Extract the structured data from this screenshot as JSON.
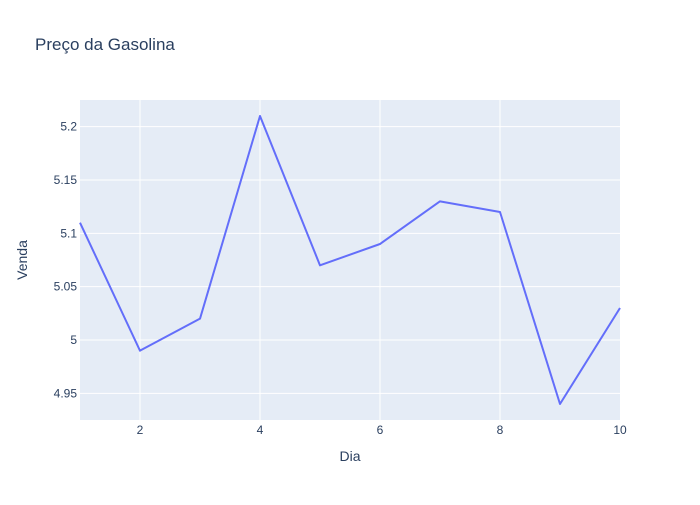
{
  "chart_data": {
    "type": "line",
    "title": "Preço da Gasolina",
    "xlabel": "Dia",
    "ylabel": "Venda",
    "xlim": [
      1,
      10
    ],
    "ylim": [
      4.925,
      5.225
    ],
    "grid": true,
    "xticks": [
      2,
      4,
      6,
      8,
      10
    ],
    "xtick_labels": [
      "2",
      "4",
      "6",
      "8",
      "10"
    ],
    "yticks": [
      4.95,
      5.0,
      5.05,
      5.1,
      5.15,
      5.2
    ],
    "ytick_labels": [
      "4.95",
      "5",
      "5.05",
      "5.1",
      "5.15",
      "5.2"
    ],
    "series": [
      {
        "x": [
          1,
          2,
          3,
          4,
          5,
          6,
          7,
          8,
          9,
          10
        ],
        "values": [
          5.11,
          4.99,
          5.02,
          5.21,
          5.07,
          5.09,
          5.13,
          5.12,
          4.94,
          5.03
        ]
      }
    ],
    "colors": {
      "plot_bg": "#e5ecf6",
      "grid": "#ffffff",
      "line": "#636efa",
      "text": "#2a3f5f"
    }
  }
}
